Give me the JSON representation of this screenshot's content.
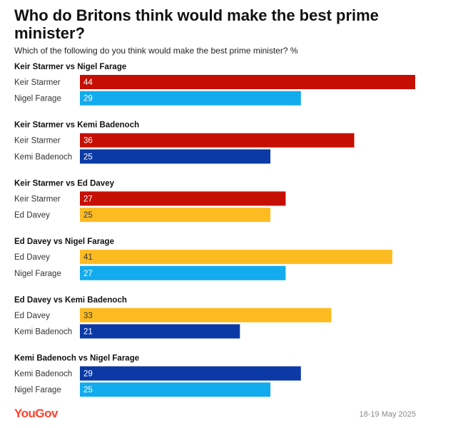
{
  "title": "Who do Britons think would make the best prime minister?",
  "subtitle": "Which of the following do you think would make the best prime minister? %",
  "footer": {
    "brand": "YouGov",
    "date": "18-19 May 2025"
  },
  "colors": {
    "Keir Starmer": "#c60f04",
    "Nigel Farage": "#12abee",
    "Kemi Badenoch": "#0b3aa6",
    "Ed Davey": "#fdbb22"
  },
  "chart_data": {
    "type": "bar",
    "orientation": "horizontal",
    "title": "Who do Britons think would make the best prime minister?",
    "subtitle": "Which of the following do you think would make the best prime minister? %",
    "xlim": [
      0,
      44
    ],
    "groups": [
      {
        "title": "Keir Starmer vs Nigel Farage",
        "bars": [
          {
            "label": "Keir Starmer",
            "value": 44
          },
          {
            "label": "Nigel Farage",
            "value": 29
          }
        ]
      },
      {
        "title": "Keir Starmer vs Kemi Badenoch",
        "bars": [
          {
            "label": "Keir Starmer",
            "value": 36
          },
          {
            "label": "Kemi Badenoch",
            "value": 25
          }
        ]
      },
      {
        "title": "Keir Starmer vs Ed Davey",
        "bars": [
          {
            "label": "Keir Starmer",
            "value": 27
          },
          {
            "label": "Ed Davey",
            "value": 25
          }
        ]
      },
      {
        "title": "Ed Davey vs Nigel Farage",
        "bars": [
          {
            "label": "Ed Davey",
            "value": 41
          },
          {
            "label": "Nigel Farage",
            "value": 27
          }
        ]
      },
      {
        "title": "Ed Davey vs Kemi Badenoch",
        "bars": [
          {
            "label": "Ed Davey",
            "value": 33
          },
          {
            "label": "Kemi Badenoch",
            "value": 21
          }
        ]
      },
      {
        "title": "Kemi Badenoch vs Nigel Farage",
        "bars": [
          {
            "label": "Kemi Badenoch",
            "value": 29
          },
          {
            "label": "Nigel Farage",
            "value": 25
          }
        ]
      }
    ]
  }
}
